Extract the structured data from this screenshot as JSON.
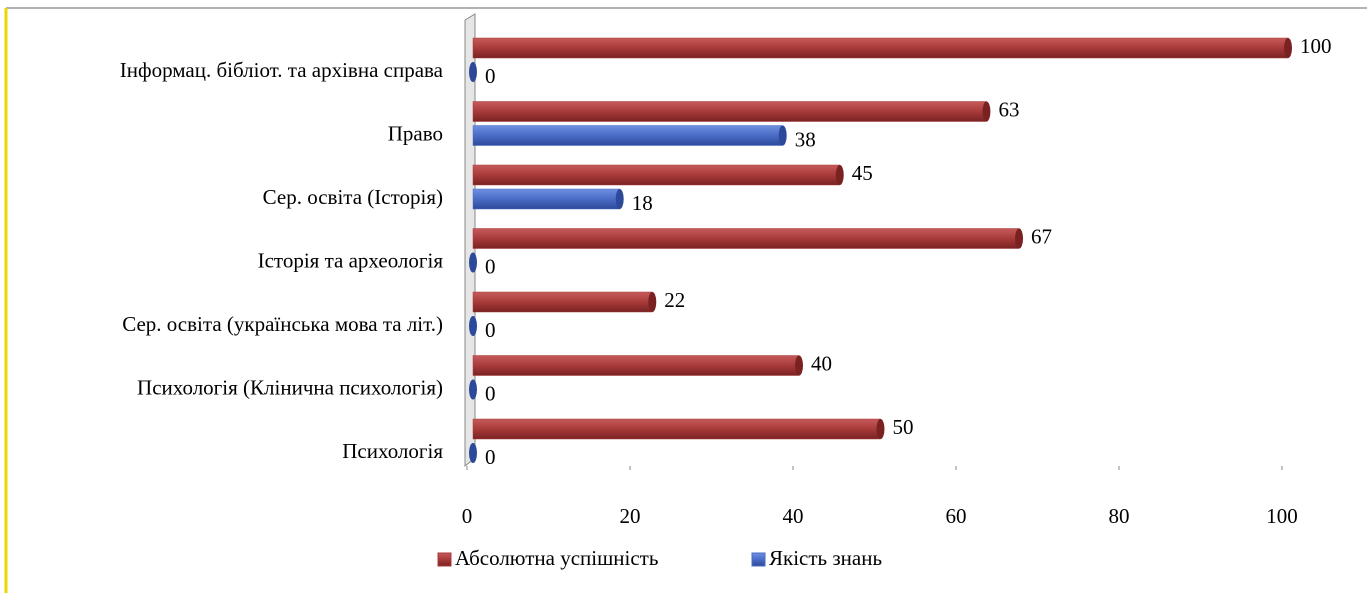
{
  "chart_data": {
    "type": "bar",
    "orientation": "horizontal",
    "categories": [
      "Інформац. бібліот. та архівна справа",
      "Право",
      "Сер. освіта (Історія)",
      "Історія та археологія",
      "Сер. освіта (українська мова та літ.)",
      "Психологія (Клінична психологія)",
      "Психологія"
    ],
    "series": [
      {
        "name": "Абсолютна успішність",
        "color": "#a83a3a",
        "values": [
          100,
          63,
          45,
          67,
          22,
          40,
          50
        ]
      },
      {
        "name": "Якість знань",
        "color": "#4a6cc6",
        "values": [
          0,
          38,
          18,
          0,
          0,
          0,
          0
        ]
      }
    ],
    "xlim": [
      0,
      100
    ],
    "xticks": [
      0,
      20,
      40,
      60,
      80,
      100
    ],
    "legend": "bottom"
  }
}
